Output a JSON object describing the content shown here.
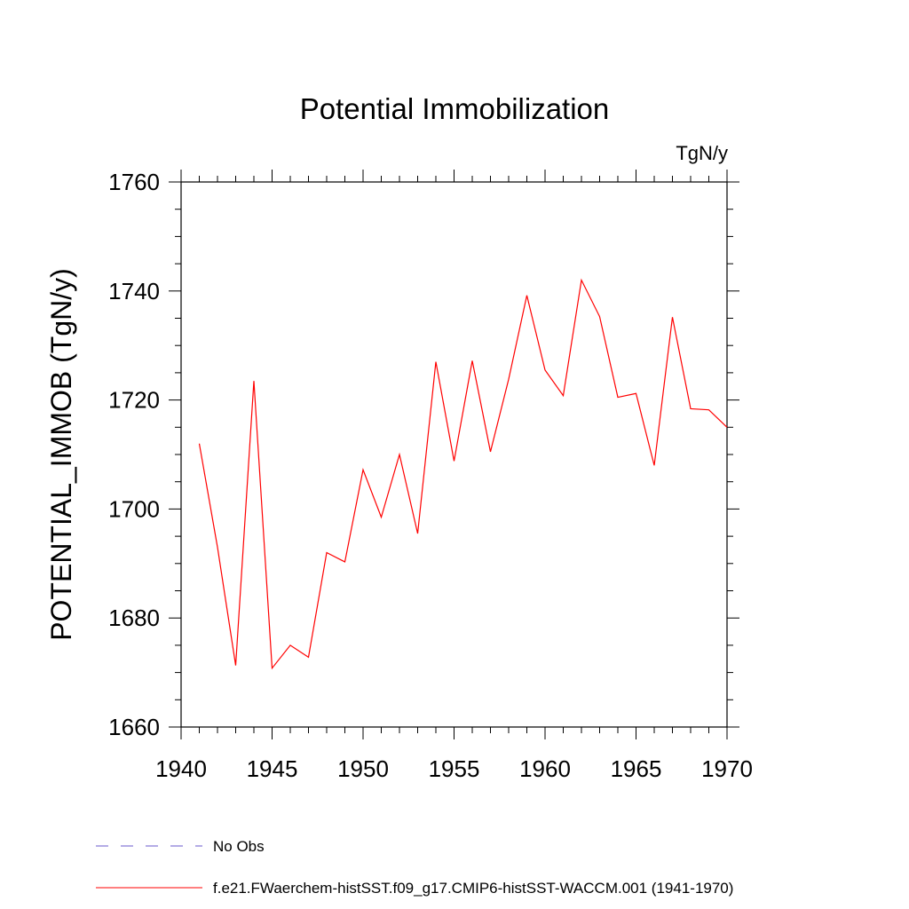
{
  "chart_data": {
    "type": "line",
    "title": "Potential Immobilization",
    "units_label": "TgN/y",
    "ylabel": "POTENTIAL_IMMOB  (TgN/y)",
    "xlabel": "",
    "xlim": [
      1940,
      1970
    ],
    "ylim": [
      1660,
      1760
    ],
    "x_ticks": [
      1940,
      1945,
      1950,
      1955,
      1960,
      1965,
      1970
    ],
    "y_ticks": [
      1660,
      1680,
      1700,
      1720,
      1740,
      1760
    ],
    "grid": false,
    "legend_position": "bottom-left",
    "series": [
      {
        "name": "f.e21.FWaerchem-histSST.f09_g17.CMIP6-histSST-WACCM.001 (1941-1970)",
        "color": "#ff0000",
        "style": "solid",
        "x": [
          1941,
          1942,
          1943,
          1944,
          1945,
          1946,
          1947,
          1948,
          1949,
          1950,
          1951,
          1952,
          1953,
          1954,
          1955,
          1956,
          1957,
          1958,
          1959,
          1960,
          1961,
          1962,
          1963,
          1964,
          1965,
          1966,
          1967,
          1968,
          1969,
          1970
        ],
        "y": [
          1712,
          1693,
          1671.3,
          1723.5,
          1670.8,
          1675,
          1672.8,
          1692,
          1690.3,
          1707.2,
          1698.5,
          1710,
          1695.5,
          1727,
          1708.8,
          1727.2,
          1710.5,
          1723.8,
          1739.2,
          1725.5,
          1720.8,
          1742,
          1735.3,
          1720.5,
          1721.2,
          1708,
          1735.2,
          1718.4,
          1718.2,
          1715
        ]
      },
      {
        "name": "No Obs",
        "color": "#6a5acd",
        "style": "dashed",
        "x": [],
        "y": []
      }
    ]
  }
}
